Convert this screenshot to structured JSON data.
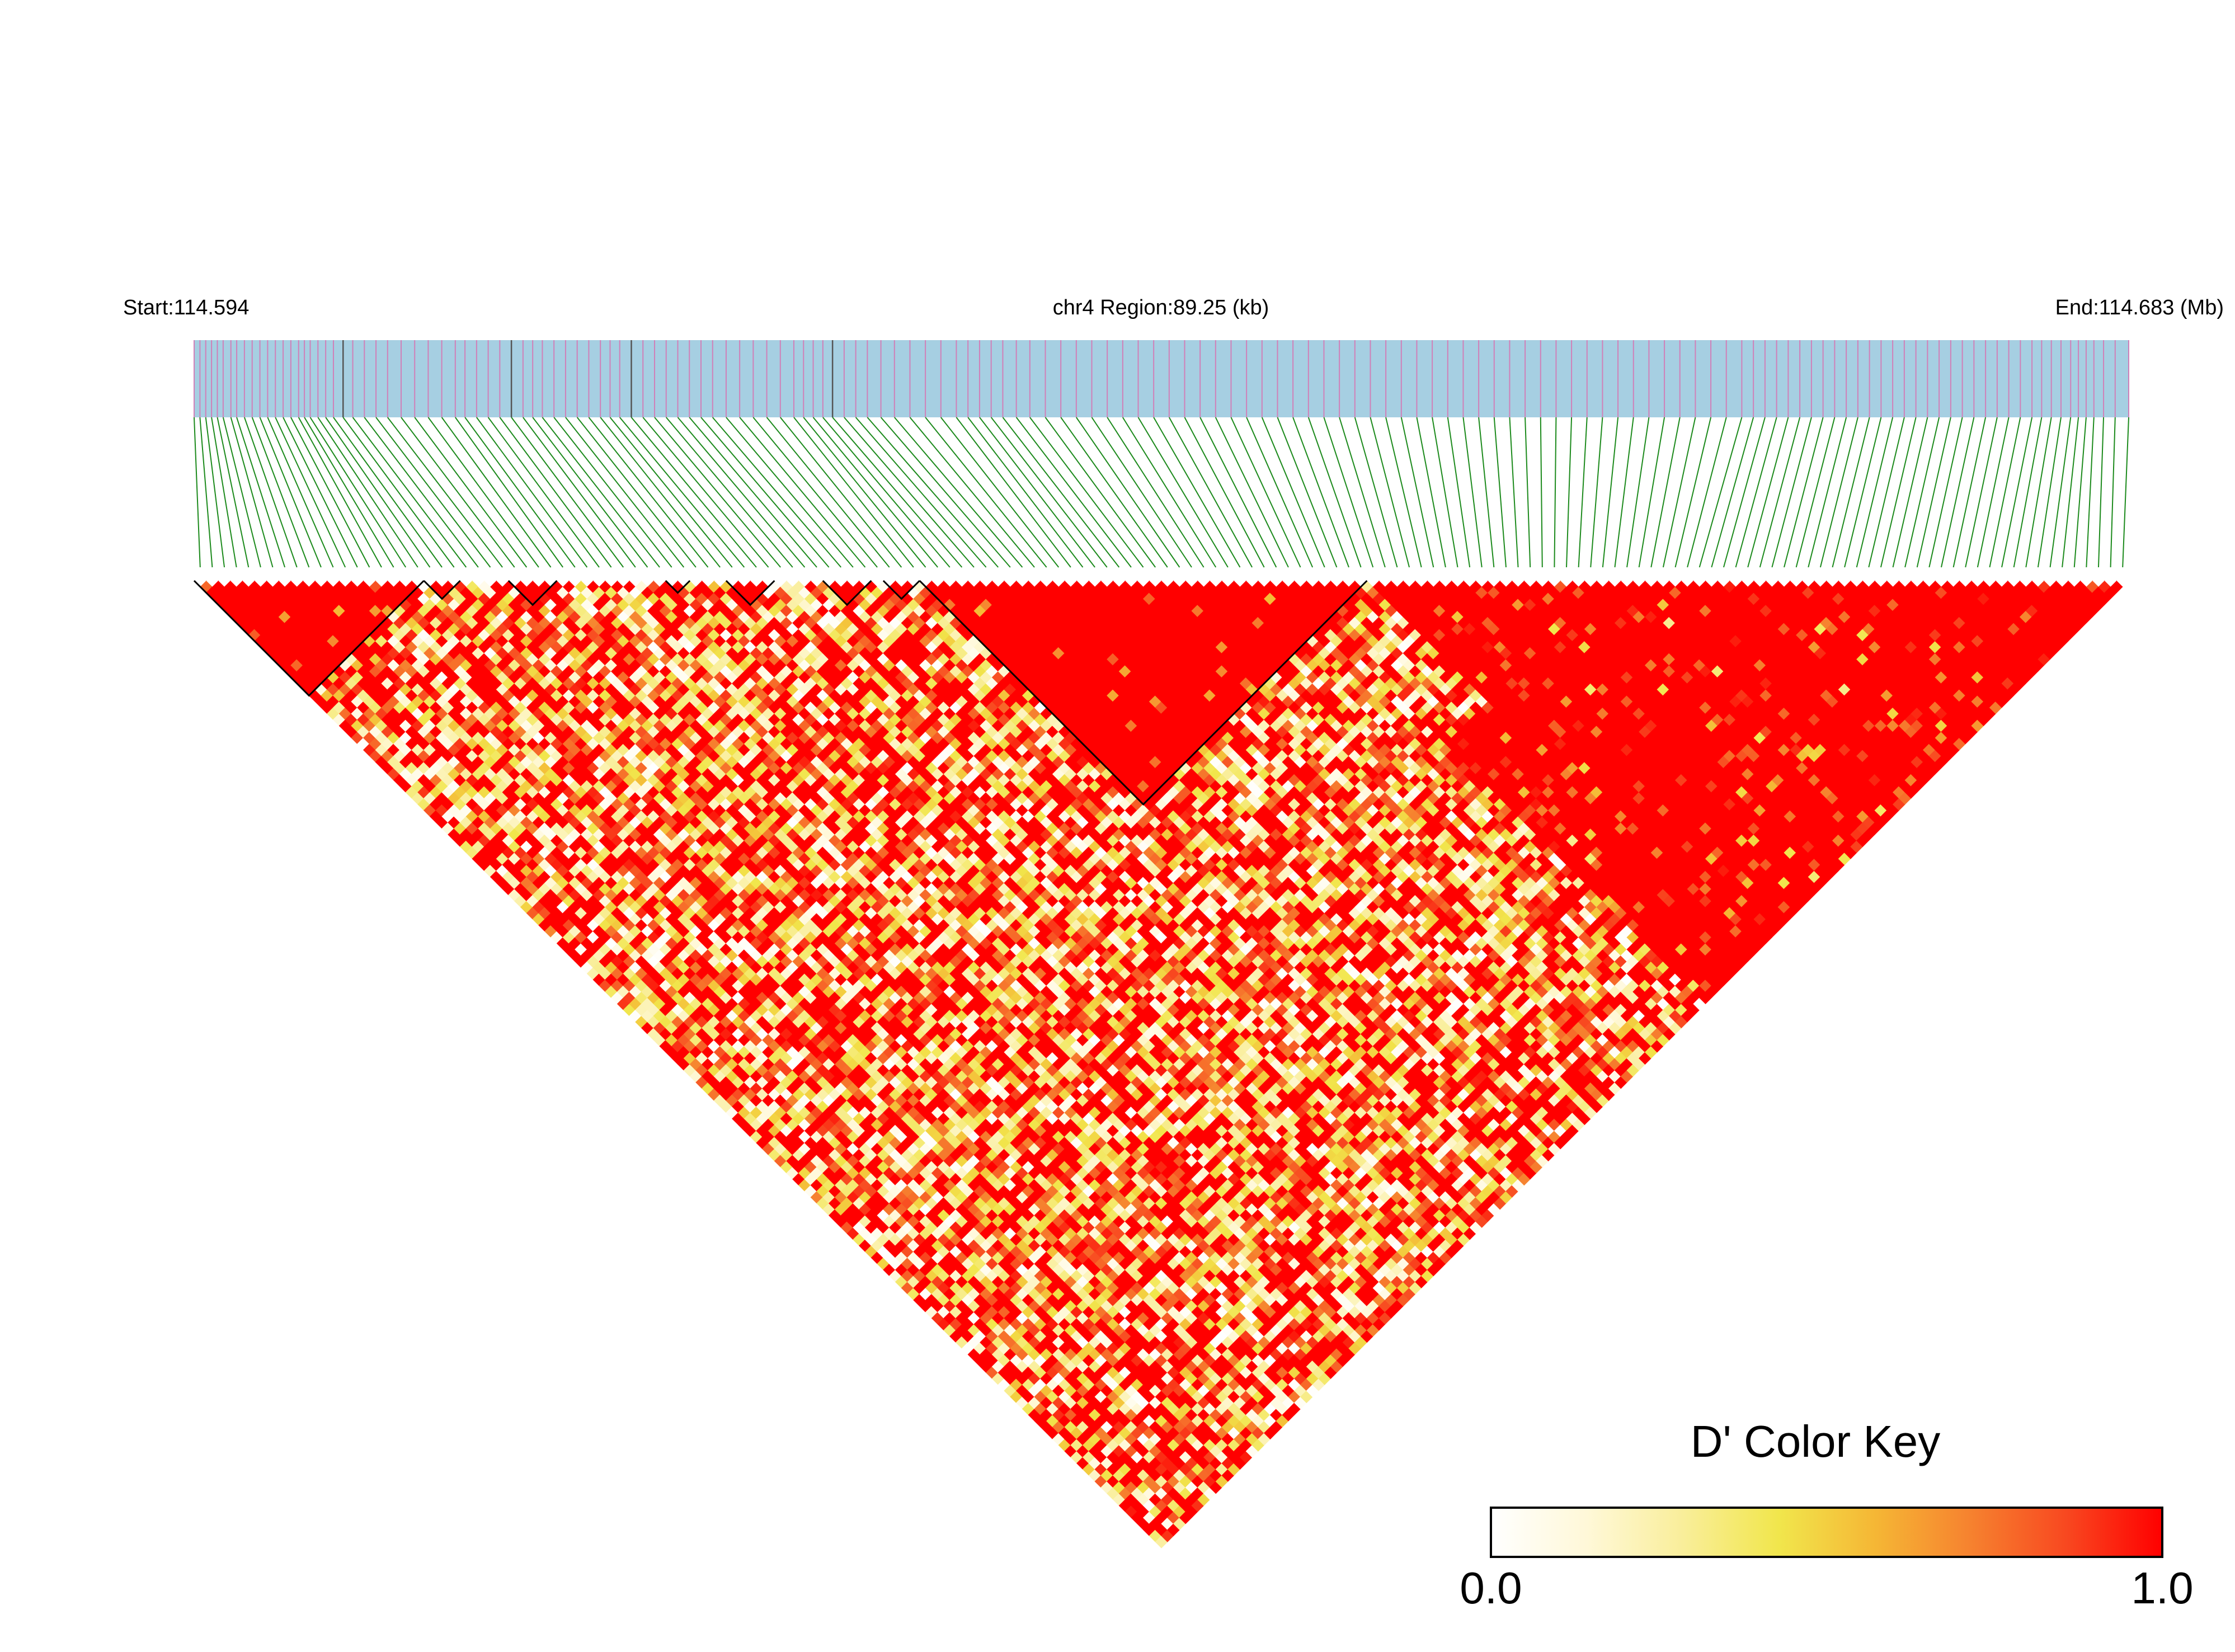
{
  "header": {
    "start_label": "Start:114.594",
    "region_label": "chr4 Region:89.25 (kb)",
    "end_label": "End:114.683 (Mb)"
  },
  "color_key": {
    "title": "D' Color Key",
    "min_label": "0.0",
    "max_label": "1.0",
    "stops": [
      "#ffffff",
      "#fff8d8",
      "#f9ee9a",
      "#f1e64c",
      "#f5b735",
      "#f6822f",
      "#f84820",
      "#ff0000"
    ]
  },
  "colors": {
    "track_fill": "#a6cfe2",
    "snp_tick": "#d080b8",
    "snp_tick_dark": "#555555",
    "connector": "#1c8a1c",
    "ld_high": "#ff0000",
    "block_outline": "#000000"
  },
  "chart_data": {
    "type": "heatmap",
    "title": "",
    "chromosome": "chr4",
    "region_start_mb": 114.594,
    "region_end_mb": 114.683,
    "region_size_kb": 89.25,
    "metric": "D'",
    "value_range": [
      0.0,
      1.0
    ],
    "snp_count": 160,
    "snp_positions_fraction": [
      0.0,
      0.003,
      0.006,
      0.009,
      0.012,
      0.015,
      0.019,
      0.022,
      0.026,
      0.03,
      0.034,
      0.038,
      0.042,
      0.046,
      0.05,
      0.054,
      0.057,
      0.06,
      0.064,
      0.068,
      0.072,
      0.077,
      0.082,
      0.088,
      0.094,
      0.1,
      0.107,
      0.114,
      0.121,
      0.128,
      0.135,
      0.14,
      0.146,
      0.152,
      0.158,
      0.164,
      0.17,
      0.175,
      0.18,
      0.186,
      0.192,
      0.198,
      0.204,
      0.21,
      0.215,
      0.22,
      0.226,
      0.232,
      0.238,
      0.244,
      0.25,
      0.256,
      0.262,
      0.268,
      0.275,
      0.282,
      0.289,
      0.296,
      0.303,
      0.31,
      0.315,
      0.32,
      0.325,
      0.33,
      0.336,
      0.342,
      0.348,
      0.355,
      0.362,
      0.37,
      0.378,
      0.386,
      0.394,
      0.4,
      0.406,
      0.412,
      0.418,
      0.425,
      0.432,
      0.44,
      0.448,
      0.456,
      0.464,
      0.472,
      0.48,
      0.488,
      0.496,
      0.504,
      0.512,
      0.52,
      0.528,
      0.536,
      0.544,
      0.552,
      0.56,
      0.568,
      0.576,
      0.584,
      0.592,
      0.6,
      0.608,
      0.616,
      0.624,
      0.632,
      0.64,
      0.648,
      0.656,
      0.664,
      0.672,
      0.68,
      0.688,
      0.696,
      0.704,
      0.712,
      0.72,
      0.728,
      0.736,
      0.744,
      0.752,
      0.76,
      0.768,
      0.776,
      0.784,
      0.792,
      0.8,
      0.806,
      0.812,
      0.818,
      0.824,
      0.83,
      0.836,
      0.842,
      0.848,
      0.854,
      0.86,
      0.866,
      0.872,
      0.878,
      0.884,
      0.89,
      0.896,
      0.902,
      0.908,
      0.914,
      0.92,
      0.926,
      0.932,
      0.938,
      0.944,
      0.95,
      0.955,
      0.96,
      0.965,
      0.97,
      0.974,
      0.978,
      0.982,
      0.987,
      0.993,
      1.0
    ],
    "dark_tick_indices": [
      21,
      35,
      46,
      63
    ],
    "haplotype_blocks": [
      [
        0,
        18
      ],
      [
        19,
        21
      ],
      [
        26,
        29
      ],
      [
        39,
        40
      ],
      [
        44,
        47
      ],
      [
        52,
        55
      ],
      [
        57,
        59
      ],
      [
        60,
        96
      ]
    ],
    "low_ld_bands": [
      [
        13,
        60
      ],
      [
        60,
        97
      ]
    ],
    "legend": {
      "position": "bottom-right"
    }
  }
}
